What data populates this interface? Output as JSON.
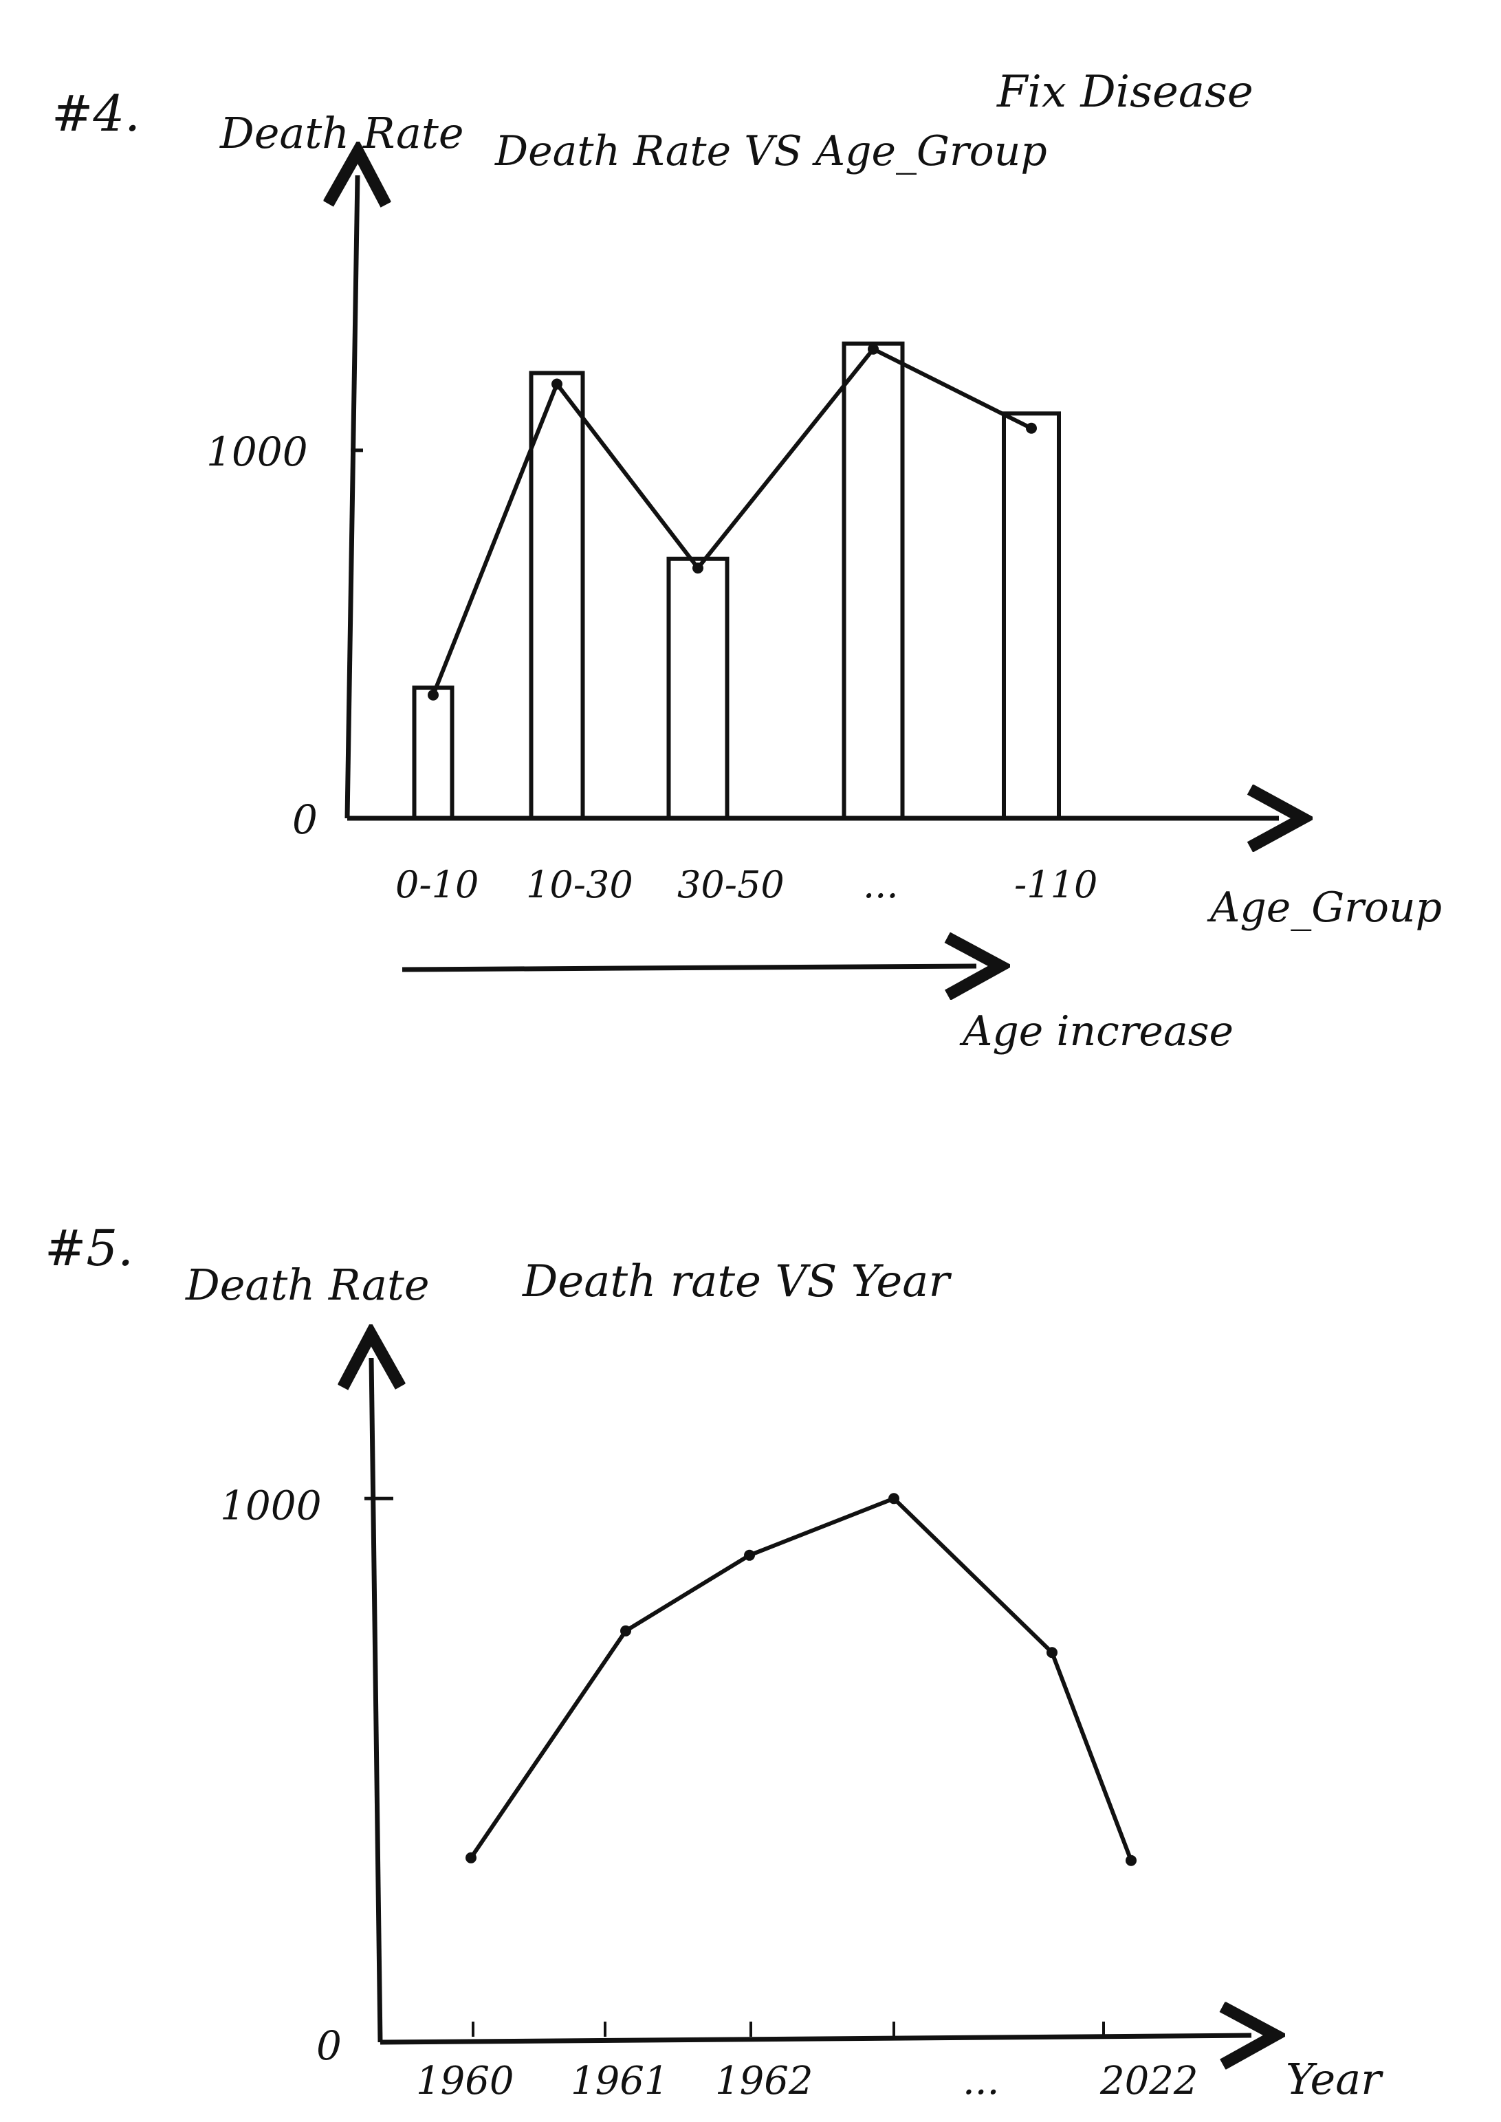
{
  "annotations": {
    "top_right_note": "Fix Disease"
  },
  "chart_data": [
    {
      "type": "bar+line",
      "label": "#4.",
      "title": "Death Rate VS Age_Group",
      "xlabel": "Age_Group",
      "ylabel": "Death Rate",
      "y_ticks": [
        {
          "value": 0,
          "label": "0"
        },
        {
          "value": 1000,
          "label": "1000"
        }
      ],
      "ylim": [
        0,
        1850
      ],
      "categories": [
        "0-10",
        "10-30",
        "30-50",
        "...",
        "-110"
      ],
      "values": [
        355,
        1210,
        705,
        1290,
        1100
      ],
      "line_values": [
        335,
        1180,
        680,
        1275,
        1060
      ],
      "tick_labels": [
        "0-10",
        "10-30",
        "30-50",
        "...",
        "-110"
      ],
      "arrow_note": "Age increase",
      "grid": false,
      "legend": "none"
    },
    {
      "type": "line",
      "label": "#5.",
      "title": "Death rate VS Year",
      "xlabel": "Year",
      "ylabel": "Death Rate",
      "y_ticks": [
        {
          "value": 0,
          "label": "0"
        },
        {
          "value": 1000,
          "label": "1000"
        }
      ],
      "ylim": [
        0,
        1260
      ],
      "x_tick_labels": [
        "1960",
        "1961",
        "1962",
        "",
        "...",
        "2022"
      ],
      "points": [
        {
          "label": "1960",
          "value": 335
        },
        {
          "label": "1961",
          "value": 755
        },
        {
          "label": "1962",
          "value": 895
        },
        {
          "label": "",
          "value": 1000
        },
        {
          "label": "",
          "value": 715
        },
        {
          "label": "2022",
          "value": 330
        }
      ],
      "grid": false,
      "legend": "none"
    }
  ]
}
